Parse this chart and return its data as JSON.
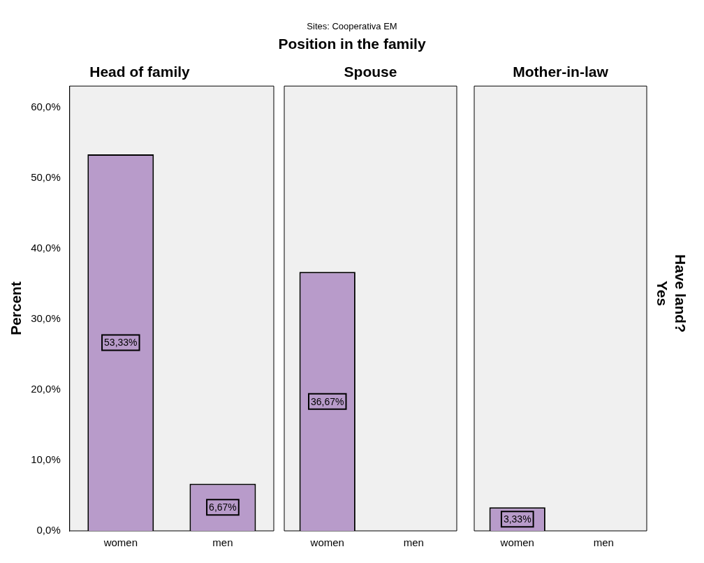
{
  "chart_data": [
    {
      "type": "bar",
      "title": "Head of family",
      "ylabel": "Percent",
      "categories": [
        "women",
        "men"
      ],
      "values": [
        53.33,
        6.67
      ],
      "value_labels": [
        "53,33%",
        "6,67%"
      ],
      "color": "#b89bca",
      "ylim": [
        0,
        63
      ],
      "yticks": [
        {
          "value": 0,
          "label": "0,0%"
        },
        {
          "value": 10,
          "label": "10,0%"
        },
        {
          "value": 20,
          "label": "20,0%"
        },
        {
          "value": 30,
          "label": "30,0%"
        },
        {
          "value": 40,
          "label": "40,0%"
        },
        {
          "value": 50,
          "label": "50,0%"
        },
        {
          "value": 60,
          "label": "60,0%"
        }
      ],
      "grid": false,
      "legend": false,
      "annotations": [
        "Sites: Cooperativa EM",
        "Position in the family"
      ]
    },
    {
      "type": "bar",
      "title": "Spouse",
      "categories": [
        "women",
        "men"
      ],
      "values": [
        36.67,
        null
      ],
      "value_labels": [
        "36,67%",
        null
      ],
      "color": "#b89bca",
      "ylim": [
        0,
        63
      ],
      "tick_labels": "x",
      "grid": false,
      "legend": false
    },
    {
      "type": "bar",
      "title": "Mother-in-law",
      "categories": [
        "women",
        "men"
      ],
      "values": [
        3.33,
        null
      ],
      "value_labels": [
        "3,33%",
        null
      ],
      "color": "#b89bca",
      "ylim": [
        0,
        63
      ],
      "tick_labels": "x",
      "grid": false,
      "legend": false,
      "annotations": [
        "Have land?",
        "Yes"
      ]
    }
  ]
}
